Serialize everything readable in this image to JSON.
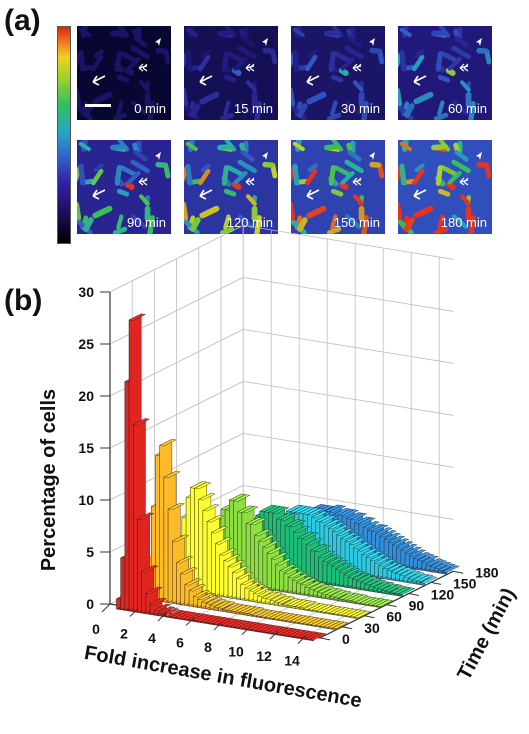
{
  "panel_a": {
    "label": "(a)",
    "scale_bar": true,
    "tiles": [
      {
        "time_label": "0 min",
        "intensity": 0.05
      },
      {
        "time_label": "15 min",
        "intensity": 0.25
      },
      {
        "time_label": "30 min",
        "intensity": 0.35
      },
      {
        "time_label": "60 min",
        "intensity": 0.45
      },
      {
        "time_label": "90 min",
        "intensity": 0.6
      },
      {
        "time_label": "120 min",
        "intensity": 0.72
      },
      {
        "time_label": "150 min",
        "intensity": 0.82
      },
      {
        "time_label": "180 min",
        "intensity": 0.92
      }
    ],
    "colorbar_colors": [
      "#000000",
      "#3222a8",
      "#28a8c0",
      "#2fc060",
      "#f0d020",
      "#e02010"
    ]
  },
  "panel_b": {
    "label": "(b)"
  },
  "chart_data": {
    "type": "bar",
    "subtype": "3d-histogram",
    "title": "",
    "xlabel": "Fold increase in fluorescence",
    "ylabel": "Time (min)",
    "zlabel": "Percentage of cells",
    "x_ticks": [
      "0",
      "2",
      "4",
      "6",
      "8",
      "10",
      "12",
      "14"
    ],
    "z_ticks": [
      "0",
      "5",
      "10",
      "15",
      "20",
      "25",
      "30"
    ],
    "zlim": [
      0,
      30
    ],
    "xlim": [
      0,
      15
    ],
    "bin_width": 0.3,
    "grid": true,
    "series": [
      {
        "name": "0",
        "color": "#c8201c",
        "values": [
          0,
          0,
          0,
          1,
          5,
          22,
          28,
          18,
          9,
          4,
          2,
          1,
          0.5,
          0.3,
          0.2,
          0.1,
          0.1,
          0.1,
          0.1,
          0.1,
          0.1,
          0.1,
          0.1,
          0.1,
          0.1,
          0.1,
          0.1,
          0.1,
          0.1,
          0.1,
          0.1,
          0.1,
          0.1,
          0.1,
          0.1,
          0.1,
          0.1,
          0.1,
          0.1,
          0.1,
          0.1,
          0.1,
          0.1,
          0.1,
          0.1,
          0.1,
          0.1,
          0.1,
          0.1,
          0.1
        ]
      },
      {
        "name": "30",
        "color": "#f5a623",
        "values": [
          0,
          0,
          0,
          0,
          1,
          4,
          9,
          14,
          15,
          12,
          9,
          6,
          4,
          3,
          2,
          1.5,
          1,
          0.8,
          0.6,
          0.5,
          0.4,
          0.3,
          0.3,
          0.2,
          0.2,
          0.2,
          0.2,
          0.2,
          0.2,
          0.2,
          0.1,
          0.1,
          0.1,
          0.1,
          0.1,
          0.1,
          0.1,
          0.1,
          0.1,
          0.1,
          0.1,
          0.1,
          0.1,
          0.1,
          0.1,
          0.1,
          0.1,
          0.1,
          0.1,
          0.1
        ]
      },
      {
        "name": "60",
        "color": "#e6e52a",
        "values": [
          0,
          0,
          0,
          0,
          0,
          1,
          3,
          5,
          7,
          9,
          10,
          10,
          9,
          8,
          7,
          6,
          5,
          4,
          3.5,
          3,
          2.5,
          2,
          1.5,
          1.2,
          1,
          0.8,
          0.6,
          0.5,
          0.5,
          0.4,
          0.3,
          0.3,
          0.2,
          0.2,
          0.2,
          0.2,
          0.2,
          0.1,
          0.1,
          0.1,
          0.1,
          0.1,
          0.1,
          0.1,
          0.1,
          0.1,
          0.1,
          0.1,
          0.1,
          0.1
        ]
      },
      {
        "name": "90",
        "color": "#7ec63a",
        "values": [
          0,
          0,
          0,
          0,
          0,
          0,
          1,
          2,
          3,
          4,
          5,
          6,
          7,
          7,
          8,
          8,
          7,
          7,
          6,
          6,
          5,
          4.5,
          4,
          3.5,
          3,
          2.5,
          2,
          1.8,
          1.5,
          1.3,
          1.1,
          1,
          0.8,
          0.7,
          0.6,
          0.5,
          0.4,
          0.4,
          0.3,
          0.3,
          0.2,
          0.2,
          0.2,
          0.2,
          0.1,
          0.1,
          0.1,
          0.1,
          0.1,
          0.1
        ]
      },
      {
        "name": "120",
        "color": "#1aa86a",
        "values": [
          0,
          0,
          0,
          0,
          0,
          0,
          0.5,
          1,
          1.5,
          2,
          3,
          3.5,
          4,
          4.5,
          5,
          5.5,
          6,
          6,
          6,
          6,
          5.5,
          5.5,
          5,
          5,
          4.5,
          4,
          4,
          3.5,
          3,
          3,
          2.5,
          2.2,
          2,
          1.8,
          1.6,
          1.4,
          1.2,
          1,
          0.9,
          0.8,
          0.7,
          0.6,
          0.5,
          0.4,
          0.4,
          0.3,
          0.3,
          0.2,
          0.2,
          0.2
        ]
      },
      {
        "name": "150",
        "color": "#27b4c8",
        "values": [
          0,
          0,
          0,
          0,
          0,
          0,
          0.3,
          0.6,
          1,
          1.5,
          2,
          2.5,
          3,
          3.5,
          4,
          4,
          4.5,
          5,
          5,
          5,
          5,
          5,
          5,
          4.8,
          4.5,
          4.5,
          4.2,
          4,
          3.8,
          3.5,
          3.2,
          3,
          2.8,
          2.5,
          2.3,
          2,
          1.8,
          1.6,
          1.4,
          1.2,
          1,
          0.9,
          0.8,
          0.7,
          0.6,
          0.5,
          0.4,
          0.3,
          0.3,
          0.2
        ]
      },
      {
        "name": "180",
        "color": "#2b7fc4",
        "values": [
          0,
          0,
          0,
          0,
          0,
          0,
          0.2,
          0.4,
          0.7,
          1,
          1.5,
          2,
          2.5,
          3,
          3,
          3.5,
          3.5,
          4,
          4,
          4,
          4,
          4.2,
          4.2,
          4,
          4,
          4,
          3.8,
          3.8,
          3.5,
          3.5,
          3.2,
          3,
          3,
          2.8,
          2.6,
          2.4,
          2.2,
          2,
          1.8,
          1.6,
          1.4,
          1.2,
          1,
          0.9,
          0.8,
          0.6,
          0.5,
          0.4,
          0.3,
          0.2
        ]
      }
    ]
  }
}
